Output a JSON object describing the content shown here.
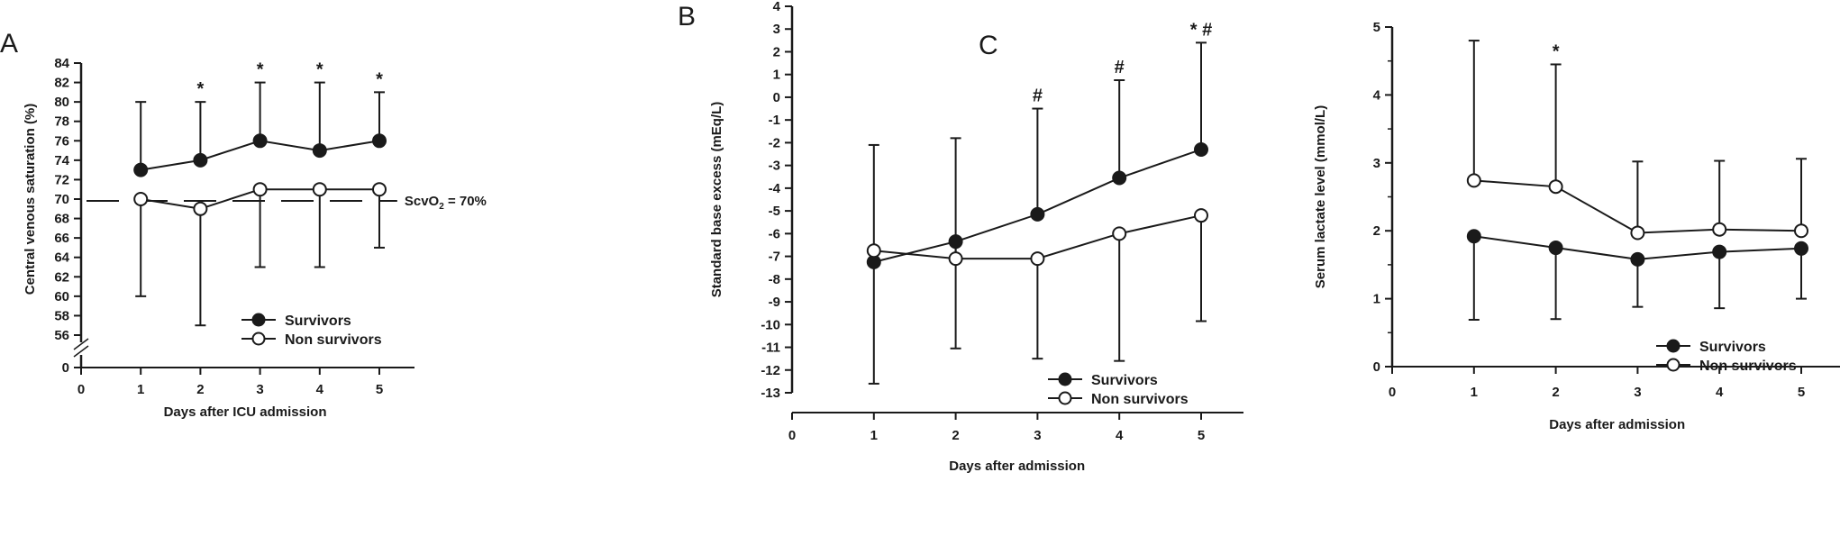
{
  "chart_data": [
    {
      "type": "line",
      "panel_label": "A",
      "xlabel": "Days after ICU admission",
      "ylabel": "Central venous saturation (%)",
      "x_ticks": [
        0,
        1,
        2,
        3,
        4,
        5
      ],
      "y_ticks": [
        0,
        56,
        58,
        60,
        62,
        64,
        66,
        68,
        70,
        72,
        74,
        76,
        78,
        80,
        82,
        84
      ],
      "ylim": [
        56,
        84
      ],
      "y_axis_break": true,
      "grid": false,
      "legend_position": "bottom-right",
      "x": [
        1,
        2,
        3,
        4,
        5
      ],
      "series": [
        {
          "name": "Survivors",
          "marker": "filled-circle",
          "values": [
            73,
            74,
            76,
            75,
            76
          ],
          "error_high": [
            80,
            80,
            82,
            82,
            81
          ],
          "error_low": [
            null,
            null,
            null,
            null,
            null
          ]
        },
        {
          "name": "Non survivors",
          "marker": "open-circle",
          "values": [
            70,
            69,
            71,
            71,
            71
          ],
          "error_high": [
            null,
            null,
            null,
            null,
            null
          ],
          "error_low": [
            60,
            57,
            63,
            63,
            65
          ]
        }
      ],
      "reference_line": {
        "value": 70,
        "style": "dashed",
        "label_main": "ScvO",
        "label_sub": "2",
        "label_rest": " = 70%"
      },
      "annotations": [
        {
          "x": 2,
          "text": "*"
        },
        {
          "x": 3,
          "text": "*"
        },
        {
          "x": 4,
          "text": "*"
        },
        {
          "x": 5,
          "text": "*"
        }
      ]
    },
    {
      "type": "line",
      "panel_label": "B",
      "xlabel": "Days after admission",
      "ylabel": "Standard base excess (mEq/L)",
      "x_ticks": [
        0,
        1,
        2,
        3,
        4,
        5
      ],
      "y_ticks": [
        4,
        3,
        2,
        1,
        0,
        -1,
        -2,
        -3,
        -4,
        -5,
        -6,
        -7,
        -8,
        -9,
        -10,
        -11,
        -12,
        -13
      ],
      "ylim": [
        -13,
        4
      ],
      "grid": false,
      "legend_position": "bottom-right",
      "x": [
        1,
        2,
        3,
        4,
        5
      ],
      "series": [
        {
          "name": "Survivors",
          "marker": "filled-circle",
          "values": [
            -7.25,
            -6.35,
            -5.15,
            -3.55,
            -2.3
          ],
          "error_high": [
            null,
            null,
            -0.5,
            0.75,
            2.4
          ],
          "error_low": [
            -12.6,
            -11.05,
            null,
            null,
            null
          ]
        },
        {
          "name": "Non survivors",
          "marker": "open-circle",
          "values": [
            -6.75,
            -7.1,
            -7.1,
            -6.0,
            -5.2
          ],
          "error_high": [
            -2.1,
            -1.8,
            null,
            null,
            null
          ],
          "error_low": [
            null,
            null,
            -11.5,
            -11.6,
            -9.85
          ]
        }
      ],
      "annotations": [
        {
          "x": 3,
          "text": "#"
        },
        {
          "x": 4,
          "text": "#"
        },
        {
          "x": 5,
          "text": "* #"
        }
      ]
    },
    {
      "type": "line",
      "panel_label": "C",
      "xlabel": "Days after admission",
      "ylabel": "Serum lactate level (mmol/L)",
      "x_ticks": [
        0,
        1,
        2,
        3,
        4,
        5
      ],
      "y_ticks": [
        0,
        1,
        2,
        3,
        4,
        5
      ],
      "ylim": [
        0,
        5
      ],
      "grid": false,
      "legend_position": "bottom-right",
      "x": [
        1,
        2,
        3,
        4,
        5
      ],
      "series": [
        {
          "name": "Survivors",
          "marker": "filled-circle",
          "values": [
            1.92,
            1.75,
            1.58,
            1.69,
            1.74
          ],
          "error_high": [
            null,
            null,
            null,
            null,
            null
          ],
          "error_low": [
            0.69,
            0.7,
            0.88,
            0.86,
            1.0
          ]
        },
        {
          "name": "Non survivors",
          "marker": "open-circle",
          "values": [
            2.74,
            2.65,
            1.97,
            2.02,
            2.0
          ],
          "error_high": [
            4.8,
            4.45,
            3.02,
            3.03,
            3.06
          ],
          "error_low": [
            null,
            null,
            null,
            null,
            null
          ]
        }
      ],
      "annotations": [
        {
          "x": 2,
          "text": "*"
        }
      ]
    }
  ]
}
